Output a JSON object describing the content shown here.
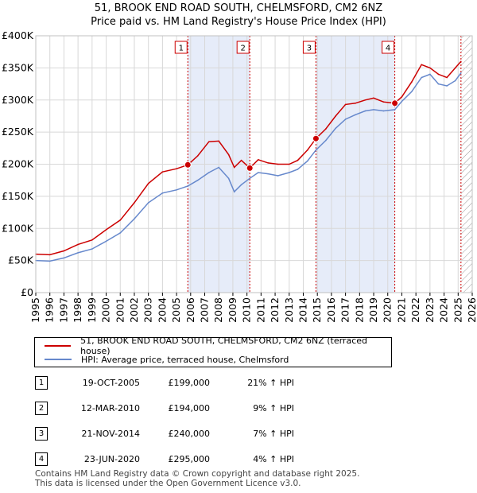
{
  "chart_data": {
    "type": "line",
    "title": "51, BROOK END ROAD SOUTH, CHELMSFORD, CM2 6NZ",
    "subtitle": "Price paid vs. HM Land Registry's House Price Index (HPI)",
    "y_ticks": [
      {
        "value": 0,
        "label": "£0"
      },
      {
        "value": 50000,
        "label": "£50K"
      },
      {
        "value": 100000,
        "label": "£100K"
      },
      {
        "value": 150000,
        "label": "£150K"
      },
      {
        "value": 200000,
        "label": "£200K"
      },
      {
        "value": 250000,
        "label": "£250K"
      },
      {
        "value": 300000,
        "label": "£300K"
      },
      {
        "value": 350000,
        "label": "£350K"
      },
      {
        "value": 400000,
        "label": "£400K"
      }
    ],
    "x_ticks": [
      "1995",
      "1996",
      "1997",
      "1998",
      "1999",
      "2000",
      "2001",
      "2002",
      "2003",
      "2004",
      "2005",
      "2006",
      "2007",
      "2008",
      "2009",
      "2010",
      "2011",
      "2012",
      "2013",
      "2014",
      "2015",
      "2016",
      "2017",
      "2018",
      "2019",
      "2020",
      "2021",
      "2022",
      "2023",
      "2024",
      "2025",
      "2026"
    ],
    "xlim": [
      1995,
      2026
    ],
    "ylim": [
      0,
      400000
    ],
    "grid": true,
    "series": [
      {
        "name": "51, BROOK END ROAD SOUTH, CHELMSFORD, CM2 6NZ (terraced house)",
        "color": "#cc0000",
        "points": [
          [
            1995.0,
            60000
          ],
          [
            1996.0,
            59000
          ],
          [
            1997.0,
            65000
          ],
          [
            1998.0,
            75000
          ],
          [
            1999.0,
            82000
          ],
          [
            2000.0,
            98000
          ],
          [
            2001.0,
            113000
          ],
          [
            2002.0,
            140000
          ],
          [
            2003.0,
            170000
          ],
          [
            2004.0,
            188000
          ],
          [
            2005.0,
            193000
          ],
          [
            2005.8,
            199000
          ],
          [
            2006.5,
            213000
          ],
          [
            2007.3,
            235000
          ],
          [
            2008.0,
            236000
          ],
          [
            2008.7,
            215000
          ],
          [
            2009.1,
            195000
          ],
          [
            2009.6,
            206000
          ],
          [
            2010.2,
            194000
          ],
          [
            2010.8,
            207000
          ],
          [
            2011.5,
            202000
          ],
          [
            2012.2,
            200000
          ],
          [
            2013.0,
            200000
          ],
          [
            2013.6,
            206000
          ],
          [
            2014.3,
            222000
          ],
          [
            2014.9,
            240000
          ],
          [
            2015.6,
            255000
          ],
          [
            2016.3,
            275000
          ],
          [
            2017.0,
            293000
          ],
          [
            2017.7,
            295000
          ],
          [
            2018.4,
            300000
          ],
          [
            2019.0,
            303000
          ],
          [
            2019.7,
            297000
          ],
          [
            2020.5,
            295000
          ],
          [
            2021.0,
            305000
          ],
          [
            2021.7,
            328000
          ],
          [
            2022.4,
            355000
          ],
          [
            2023.0,
            350000
          ],
          [
            2023.6,
            340000
          ],
          [
            2024.2,
            335000
          ],
          [
            2024.8,
            350000
          ],
          [
            2025.2,
            360000
          ]
        ]
      },
      {
        "name": "HPI: Average price, terraced house, Chelmsford",
        "color": "#6688cc",
        "points": [
          [
            1995.0,
            50000
          ],
          [
            1996.0,
            49000
          ],
          [
            1997.0,
            54000
          ],
          [
            1998.0,
            62000
          ],
          [
            1999.0,
            68000
          ],
          [
            2000.0,
            80000
          ],
          [
            2001.0,
            93000
          ],
          [
            2002.0,
            115000
          ],
          [
            2003.0,
            140000
          ],
          [
            2004.0,
            155000
          ],
          [
            2005.0,
            160000
          ],
          [
            2005.8,
            166000
          ],
          [
            2006.5,
            175000
          ],
          [
            2007.3,
            187000
          ],
          [
            2008.0,
            195000
          ],
          [
            2008.7,
            178000
          ],
          [
            2009.1,
            157000
          ],
          [
            2009.6,
            168000
          ],
          [
            2010.2,
            178000
          ],
          [
            2010.8,
            187000
          ],
          [
            2011.5,
            185000
          ],
          [
            2012.2,
            182000
          ],
          [
            2013.0,
            187000
          ],
          [
            2013.6,
            192000
          ],
          [
            2014.3,
            205000
          ],
          [
            2014.9,
            222000
          ],
          [
            2015.6,
            237000
          ],
          [
            2016.3,
            256000
          ],
          [
            2017.0,
            270000
          ],
          [
            2017.7,
            277000
          ],
          [
            2018.4,
            283000
          ],
          [
            2019.0,
            285000
          ],
          [
            2019.7,
            283000
          ],
          [
            2020.5,
            285000
          ],
          [
            2021.0,
            298000
          ],
          [
            2021.7,
            313000
          ],
          [
            2022.4,
            335000
          ],
          [
            2023.0,
            340000
          ],
          [
            2023.6,
            325000
          ],
          [
            2024.2,
            322000
          ],
          [
            2024.8,
            330000
          ],
          [
            2025.2,
            342000
          ]
        ]
      }
    ],
    "sale_markers": [
      {
        "label": "1",
        "x": 2005.8,
        "y": 199000
      },
      {
        "label": "2",
        "x": 2010.2,
        "y": 194000
      },
      {
        "label": "3",
        "x": 2014.9,
        "y": 240000
      },
      {
        "label": "4",
        "x": 2020.5,
        "y": 295000
      }
    ],
    "shaded_ranges": [
      [
        2005.8,
        2010.2
      ],
      [
        2014.9,
        2020.5
      ]
    ],
    "future_hatch_from": 2025.2
  },
  "legend": {
    "property_label": "51, BROOK END ROAD SOUTH, CHELMSFORD, CM2 6NZ (terraced house)",
    "hpi_label": "HPI: Average price, terraced house, Chelmsford",
    "property_color": "#cc0000",
    "hpi_color": "#6688cc"
  },
  "sales": [
    {
      "num": "1",
      "date": "19-OCT-2005",
      "price": "£199,000",
      "hpi": "21% ↑ HPI"
    },
    {
      "num": "2",
      "date": "12-MAR-2010",
      "price": "£194,000",
      "hpi": "9% ↑ HPI"
    },
    {
      "num": "3",
      "date": "21-NOV-2014",
      "price": "£240,000",
      "hpi": "7% ↑ HPI"
    },
    {
      "num": "4",
      "date": "23-JUN-2020",
      "price": "£295,000",
      "hpi": "4% ↑ HPI"
    }
  ],
  "footer": {
    "line1": "Contains HM Land Registry data © Crown copyright and database right 2025.",
    "line2": "This data is licensed under the Open Government Licence v3.0."
  }
}
